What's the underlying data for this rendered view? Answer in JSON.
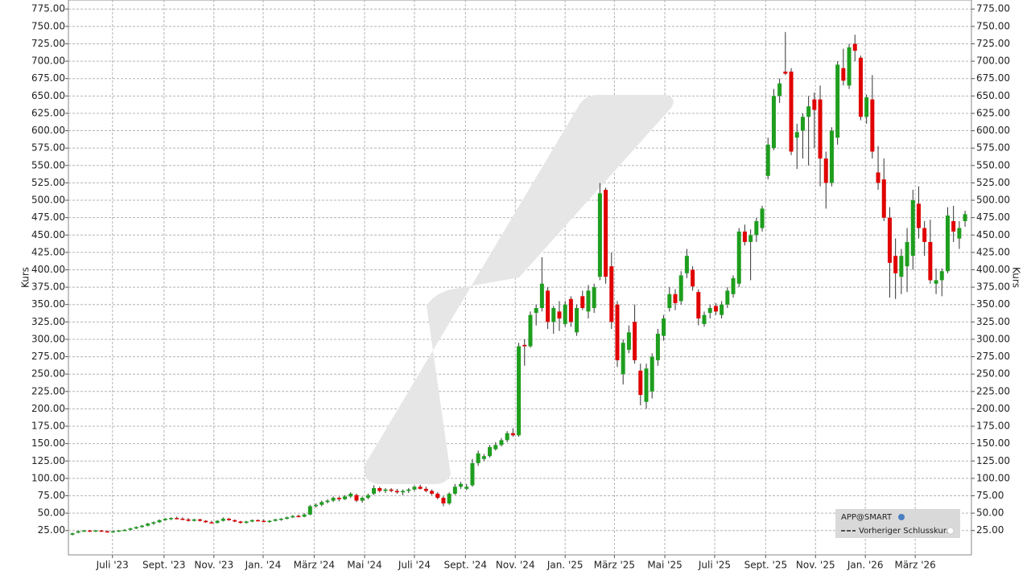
{
  "chart_data": {
    "type": "candlestick",
    "y_label": "Kurs",
    "legend": {
      "symbol": "APP@SMART",
      "line": "Vorheriger Schlusskurs"
    },
    "legend_position": "lower right",
    "up_color": "#1e9e1e",
    "down_color": "#e00000",
    "grid": true,
    "xlim": [
      -0.7,
      155.1
    ],
    "ylim": [
      -10,
      788
    ],
    "xticks": [
      {
        "value": 6.9,
        "label": "Juli '23"
      },
      {
        "value": 15.8,
        "label": "Sept. '23"
      },
      {
        "value": 24.4,
        "label": "Nov. '23"
      },
      {
        "value": 32.9,
        "label": "Jan. '24"
      },
      {
        "value": 41.7,
        "label": "März '24"
      },
      {
        "value": 50.4,
        "label": "Mai '24"
      },
      {
        "value": 59.0,
        "label": "Juli '24"
      },
      {
        "value": 67.8,
        "label": "Sept. '24"
      },
      {
        "value": 76.4,
        "label": "Nov. '24"
      },
      {
        "value": 85.0,
        "label": "Jan. '25"
      },
      {
        "value": 93.5,
        "label": "März '25"
      },
      {
        "value": 102.2,
        "label": "Mai '25"
      },
      {
        "value": 110.8,
        "label": "Juli '25"
      },
      {
        "value": 119.6,
        "label": "Sept. '25"
      },
      {
        "value": 128.2,
        "label": "Nov. '25"
      },
      {
        "value": 136.8,
        "label": "Jan. '26"
      },
      {
        "value": 145.4,
        "label": "März '26"
      }
    ],
    "yticks": [
      {
        "value": 25,
        "label": "25.00"
      },
      {
        "value": 50,
        "label": "50.00"
      },
      {
        "value": 75,
        "label": "75.00"
      },
      {
        "value": 100,
        "label": "100.00"
      },
      {
        "value": 125,
        "label": "125.00"
      },
      {
        "value": 150,
        "label": "150.00"
      },
      {
        "value": 175,
        "label": "175.00"
      },
      {
        "value": 200,
        "label": "200.00"
      },
      {
        "value": 225,
        "label": "225.00"
      },
      {
        "value": 250,
        "label": "250.00"
      },
      {
        "value": 275,
        "label": "275.00"
      },
      {
        "value": 300,
        "label": "300.00"
      },
      {
        "value": 325,
        "label": "325.00"
      },
      {
        "value": 350,
        "label": "350.00"
      },
      {
        "value": 375,
        "label": "375.00"
      },
      {
        "value": 400,
        "label": "400.00"
      },
      {
        "value": 425,
        "label": "425.00"
      },
      {
        "value": 450,
        "label": "450.00"
      },
      {
        "value": 475,
        "label": "475.00"
      },
      {
        "value": 500,
        "label": "500.00"
      },
      {
        "value": 525,
        "label": "525.00"
      },
      {
        "value": 550,
        "label": "550.00"
      },
      {
        "value": 575,
        "label": "575.00"
      },
      {
        "value": 600,
        "label": "600.00"
      },
      {
        "value": 625,
        "label": "625.00"
      },
      {
        "value": 650,
        "label": "650.00"
      },
      {
        "value": 675,
        "label": "675.00"
      },
      {
        "value": 700,
        "label": "700.00"
      },
      {
        "value": 725,
        "label": "725.00"
      },
      {
        "value": 750,
        "label": "750.00"
      },
      {
        "value": 775,
        "label": "775.00"
      }
    ],
    "open": [
      19,
      22,
      24,
      25,
      24,
      25,
      24,
      23,
      24,
      25,
      26,
      28,
      30,
      32,
      35,
      37,
      40,
      42,
      43,
      42,
      41,
      39,
      41,
      39,
      37,
      36,
      39,
      42,
      40,
      38,
      36,
      38,
      40,
      39,
      38,
      39,
      41,
      42,
      44,
      46,
      45,
      48,
      60,
      62,
      66,
      68,
      72,
      70,
      74,
      76,
      68,
      72,
      78,
      86,
      82,
      84,
      82,
      80,
      82,
      84,
      88,
      85,
      82,
      78,
      72,
      64,
      78,
      88,
      85,
      90,
      122,
      128,
      132,
      142,
      148,
      155,
      165,
      162,
      292,
      290,
      338,
      345,
      370,
      325,
      340,
      322,
      358,
      310,
      362,
      340,
      345,
      390,
      515,
      405,
      350,
      250,
      285,
      325,
      255,
      210,
      225,
      270,
      305,
      345,
      365,
      355,
      395,
      400,
      368,
      322,
      338,
      348,
      335,
      350,
      365,
      380,
      455,
      440,
      450,
      460,
      535,
      575,
      650,
      685,
      685,
      590,
      600,
      620,
      645,
      645,
      560,
      525,
      590,
      690,
      665,
      725,
      705,
      620,
      645,
      540,
      530,
      475,
      420,
      390,
      405,
      420,
      495,
      460,
      440,
      380,
      385,
      398,
      470,
      445,
      470
    ],
    "high": [
      22,
      25,
      26,
      26,
      26,
      26,
      25,
      25,
      26,
      27,
      29,
      31,
      33,
      36,
      38,
      41,
      43,
      44,
      45,
      44,
      43,
      42,
      42,
      40,
      39,
      40,
      44,
      43,
      41,
      39,
      39,
      41,
      41,
      41,
      40,
      42,
      43,
      45,
      47,
      48,
      50,
      62,
      64,
      68,
      70,
      74,
      74,
      76,
      80,
      78,
      74,
      78,
      90,
      88,
      86,
      86,
      85,
      84,
      86,
      90,
      91,
      88,
      84,
      80,
      75,
      80,
      92,
      95,
      92,
      128,
      140,
      135,
      148,
      152,
      158,
      168,
      172,
      295,
      300,
      340,
      350,
      418,
      375,
      348,
      355,
      355,
      362,
      350,
      370,
      378,
      380,
      525,
      518,
      425,
      355,
      300,
      320,
      350,
      265,
      265,
      280,
      315,
      335,
      375,
      372,
      398,
      430,
      405,
      372,
      340,
      350,
      352,
      355,
      375,
      392,
      460,
      465,
      458,
      475,
      492,
      590,
      660,
      675,
      742,
      690,
      610,
      625,
      650,
      655,
      665,
      570,
      605,
      700,
      718,
      725,
      738,
      708,
      652,
      680,
      578,
      560,
      490,
      445,
      430,
      460,
      515,
      520,
      470,
      472,
      402,
      402,
      490,
      492,
      470,
      485
    ],
    "low": [
      18,
      21,
      23,
      23,
      23,
      23,
      22,
      22,
      23,
      24,
      25,
      27,
      29,
      31,
      33,
      36,
      39,
      40,
      41,
      40,
      38,
      38,
      38,
      36,
      35,
      35,
      38,
      39,
      37,
      35,
      35,
      37,
      38,
      37,
      36,
      38,
      39,
      41,
      43,
      44,
      44,
      47,
      58,
      60,
      64,
      66,
      67,
      69,
      72,
      66,
      65,
      70,
      76,
      80,
      79,
      80,
      78,
      76,
      79,
      82,
      84,
      80,
      76,
      70,
      60,
      62,
      76,
      85,
      83,
      88,
      118,
      125,
      130,
      140,
      146,
      152,
      160,
      160,
      262,
      288,
      320,
      340,
      315,
      308,
      312,
      318,
      318,
      305,
      342,
      330,
      338,
      385,
      380,
      315,
      260,
      235,
      280,
      265,
      205,
      200,
      215,
      262,
      298,
      340,
      342,
      350,
      388,
      370,
      320,
      318,
      330,
      335,
      330,
      345,
      360,
      375,
      435,
      385,
      440,
      455,
      530,
      572,
      640,
      680,
      565,
      545,
      560,
      550,
      575,
      520,
      488,
      520,
      580,
      665,
      660,
      700,
      615,
      610,
      560,
      515,
      470,
      360,
      358,
      365,
      368,
      400,
      445,
      420,
      380,
      365,
      362,
      395,
      440,
      430,
      462
    ],
    "close": [
      21,
      24,
      25,
      24,
      25,
      24,
      23,
      24,
      25,
      26,
      28,
      30,
      32,
      35,
      37,
      40,
      42,
      43,
      42,
      41,
      39,
      41,
      39,
      37,
      36,
      39,
      42,
      40,
      38,
      36,
      38,
      40,
      39,
      38,
      39,
      41,
      42,
      44,
      46,
      45,
      48,
      60,
      62,
      66,
      68,
      72,
      70,
      74,
      78,
      68,
      72,
      76,
      86,
      82,
      84,
      82,
      80,
      82,
      84,
      88,
      85,
      82,
      78,
      72,
      64,
      78,
      88,
      92,
      88,
      122,
      136,
      132,
      145,
      148,
      155,
      165,
      162,
      290,
      290,
      335,
      345,
      380,
      325,
      345,
      330,
      350,
      325,
      345,
      345,
      370,
      375,
      510,
      390,
      325,
      270,
      295,
      310,
      270,
      220,
      258,
      275,
      308,
      330,
      365,
      352,
      392,
      420,
      376,
      330,
      335,
      345,
      340,
      350,
      370,
      388,
      455,
      440,
      450,
      470,
      488,
      580,
      650,
      668,
      682,
      570,
      598,
      620,
      635,
      630,
      560,
      525,
      600,
      695,
      672,
      720,
      715,
      620,
      648,
      570,
      525,
      475,
      410,
      395,
      420,
      440,
      500,
      460,
      440,
      385,
      385,
      398,
      478,
      455,
      460,
      480
    ]
  }
}
